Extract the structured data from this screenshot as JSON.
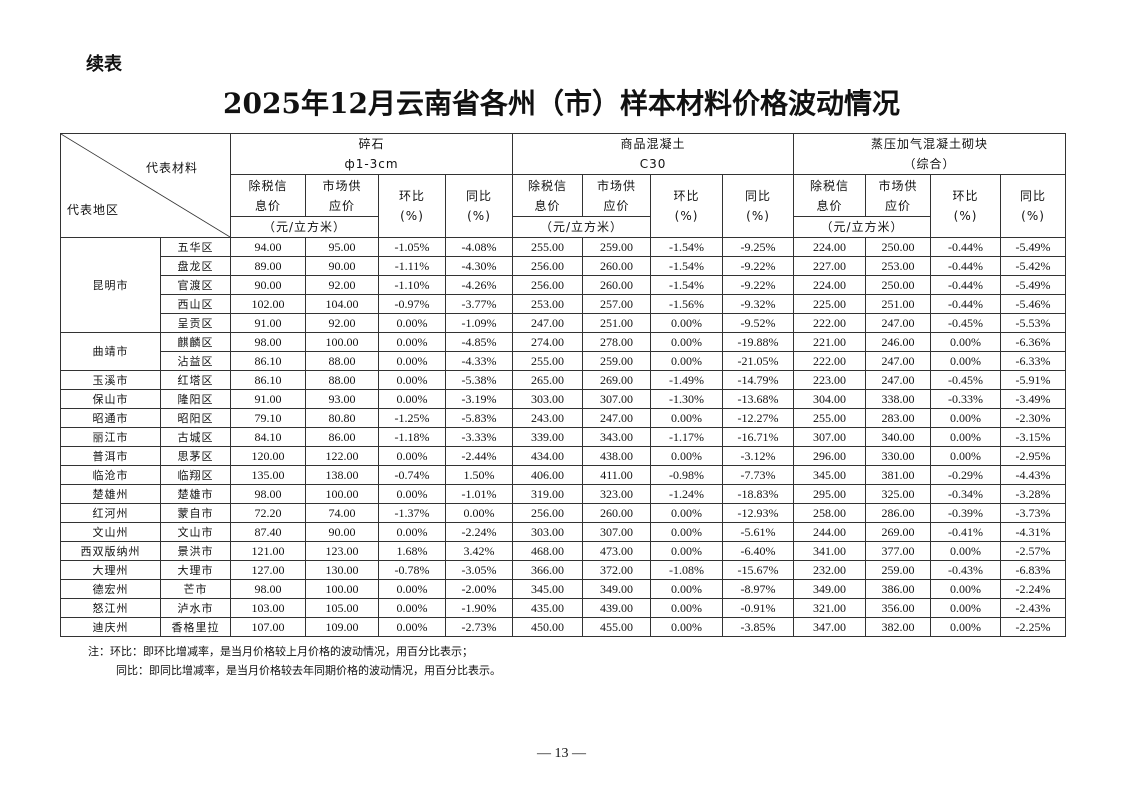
{
  "continued_label": "续表",
  "title": "2025年12月云南省各州（市）样本材料价格波动情况",
  "header": {
    "material_label": "代表材料",
    "region_label": "代表地区",
    "materials": [
      {
        "name": "碎石",
        "spec": "ф1-3cm"
      },
      {
        "name": "商品混凝土",
        "spec": "C30"
      },
      {
        "name": "蒸压加气混凝土砌块",
        "spec": "（综合）"
      }
    ],
    "col_tax_price": [
      "除税信",
      "息价"
    ],
    "col_market_price": [
      "市场供",
      "应价"
    ],
    "col_mom": [
      "环比",
      "(%)"
    ],
    "col_yoy": [
      "同比",
      "(%)"
    ],
    "unit": "（元/立方米）"
  },
  "groups": [
    {
      "city": "昆明市",
      "rows": [
        {
          "district": "五华区",
          "v": [
            "94.00",
            "95.00",
            "-1.05%",
            "-4.08%",
            "255.00",
            "259.00",
            "-1.54%",
            "-9.25%",
            "224.00",
            "250.00",
            "-0.44%",
            "-5.49%"
          ]
        },
        {
          "district": "盘龙区",
          "v": [
            "89.00",
            "90.00",
            "-1.11%",
            "-4.30%",
            "256.00",
            "260.00",
            "-1.54%",
            "-9.22%",
            "227.00",
            "253.00",
            "-0.44%",
            "-5.42%"
          ]
        },
        {
          "district": "官渡区",
          "v": [
            "90.00",
            "92.00",
            "-1.10%",
            "-4.26%",
            "256.00",
            "260.00",
            "-1.54%",
            "-9.22%",
            "224.00",
            "250.00",
            "-0.44%",
            "-5.49%"
          ]
        },
        {
          "district": "西山区",
          "v": [
            "102.00",
            "104.00",
            "-0.97%",
            "-3.77%",
            "253.00",
            "257.00",
            "-1.56%",
            "-9.32%",
            "225.00",
            "251.00",
            "-0.44%",
            "-5.46%"
          ]
        },
        {
          "district": "呈贡区",
          "v": [
            "91.00",
            "92.00",
            "0.00%",
            "-1.09%",
            "247.00",
            "251.00",
            "0.00%",
            "-9.52%",
            "222.00",
            "247.00",
            "-0.45%",
            "-5.53%"
          ]
        }
      ]
    },
    {
      "city": "曲靖市",
      "rows": [
        {
          "district": "麒麟区",
          "v": [
            "98.00",
            "100.00",
            "0.00%",
            "-4.85%",
            "274.00",
            "278.00",
            "0.00%",
            "-19.88%",
            "221.00",
            "246.00",
            "0.00%",
            "-6.36%"
          ]
        },
        {
          "district": "沾益区",
          "v": [
            "86.10",
            "88.00",
            "0.00%",
            "-4.33%",
            "255.00",
            "259.00",
            "0.00%",
            "-21.05%",
            "222.00",
            "247.00",
            "0.00%",
            "-6.33%"
          ]
        }
      ]
    },
    {
      "city": "玉溪市",
      "rows": [
        {
          "district": "红塔区",
          "v": [
            "86.10",
            "88.00",
            "0.00%",
            "-5.38%",
            "265.00",
            "269.00",
            "-1.49%",
            "-14.79%",
            "223.00",
            "247.00",
            "-0.45%",
            "-5.91%"
          ]
        }
      ]
    },
    {
      "city": "保山市",
      "rows": [
        {
          "district": "隆阳区",
          "v": [
            "91.00",
            "93.00",
            "0.00%",
            "-3.19%",
            "303.00",
            "307.00",
            "-1.30%",
            "-13.68%",
            "304.00",
            "338.00",
            "-0.33%",
            "-3.49%"
          ]
        }
      ]
    },
    {
      "city": "昭通市",
      "rows": [
        {
          "district": "昭阳区",
          "v": [
            "79.10",
            "80.80",
            "-1.25%",
            "-5.83%",
            "243.00",
            "247.00",
            "0.00%",
            "-12.27%",
            "255.00",
            "283.00",
            "0.00%",
            "-2.30%"
          ]
        }
      ]
    },
    {
      "city": "丽江市",
      "rows": [
        {
          "district": "古城区",
          "v": [
            "84.10",
            "86.00",
            "-1.18%",
            "-3.33%",
            "339.00",
            "343.00",
            "-1.17%",
            "-16.71%",
            "307.00",
            "340.00",
            "0.00%",
            "-3.15%"
          ]
        }
      ]
    },
    {
      "city": "普洱市",
      "rows": [
        {
          "district": "思茅区",
          "v": [
            "120.00",
            "122.00",
            "0.00%",
            "-2.44%",
            "434.00",
            "438.00",
            "0.00%",
            "-3.12%",
            "296.00",
            "330.00",
            "0.00%",
            "-2.95%"
          ]
        }
      ]
    },
    {
      "city": "临沧市",
      "rows": [
        {
          "district": "临翔区",
          "v": [
            "135.00",
            "138.00",
            "-0.74%",
            "1.50%",
            "406.00",
            "411.00",
            "-0.98%",
            "-7.73%",
            "345.00",
            "381.00",
            "-0.29%",
            "-4.43%"
          ]
        }
      ]
    },
    {
      "city": "楚雄州",
      "rows": [
        {
          "district": "楚雄市",
          "v": [
            "98.00",
            "100.00",
            "0.00%",
            "-1.01%",
            "319.00",
            "323.00",
            "-1.24%",
            "-18.83%",
            "295.00",
            "325.00",
            "-0.34%",
            "-3.28%"
          ]
        }
      ]
    },
    {
      "city": "红河州",
      "rows": [
        {
          "district": "蒙自市",
          "v": [
            "72.20",
            "74.00",
            "-1.37%",
            "0.00%",
            "256.00",
            "260.00",
            "0.00%",
            "-12.93%",
            "258.00",
            "286.00",
            "-0.39%",
            "-3.73%"
          ]
        }
      ]
    },
    {
      "city": "文山州",
      "rows": [
        {
          "district": "文山市",
          "v": [
            "87.40",
            "90.00",
            "0.00%",
            "-2.24%",
            "303.00",
            "307.00",
            "0.00%",
            "-5.61%",
            "244.00",
            "269.00",
            "-0.41%",
            "-4.31%"
          ]
        }
      ]
    },
    {
      "city": "西双版纳州",
      "rows": [
        {
          "district": "景洪市",
          "v": [
            "121.00",
            "123.00",
            "1.68%",
            "3.42%",
            "468.00",
            "473.00",
            "0.00%",
            "-6.40%",
            "341.00",
            "377.00",
            "0.00%",
            "-2.57%"
          ]
        }
      ]
    },
    {
      "city": "大理州",
      "rows": [
        {
          "district": "大理市",
          "v": [
            "127.00",
            "130.00",
            "-0.78%",
            "-3.05%",
            "366.00",
            "372.00",
            "-1.08%",
            "-15.67%",
            "232.00",
            "259.00",
            "-0.43%",
            "-6.83%"
          ]
        }
      ]
    },
    {
      "city": "德宏州",
      "rows": [
        {
          "district": "芒市",
          "v": [
            "98.00",
            "100.00",
            "0.00%",
            "-2.00%",
            "345.00",
            "349.00",
            "0.00%",
            "-8.97%",
            "349.00",
            "386.00",
            "0.00%",
            "-2.24%"
          ]
        }
      ]
    },
    {
      "city": "怒江州",
      "rows": [
        {
          "district": "泸水市",
          "v": [
            "103.00",
            "105.00",
            "0.00%",
            "-1.90%",
            "435.00",
            "439.00",
            "0.00%",
            "-0.91%",
            "321.00",
            "356.00",
            "0.00%",
            "-2.43%"
          ]
        }
      ]
    },
    {
      "city": "迪庆州",
      "rows": [
        {
          "district": "香格里拉",
          "v": [
            "107.00",
            "109.00",
            "0.00%",
            "-2.73%",
            "450.00",
            "455.00",
            "0.00%",
            "-3.85%",
            "347.00",
            "382.00",
            "0.00%",
            "-2.25%"
          ]
        }
      ]
    }
  ],
  "notes": [
    "注：环比：即环比增减率，是当月价格较上月价格的波动情况，用百分比表示；",
    "同比：即同比增减率，是当月价格较去年同期价格的波动情况，用百分比表示。"
  ],
  "page_number": "— 13 —"
}
